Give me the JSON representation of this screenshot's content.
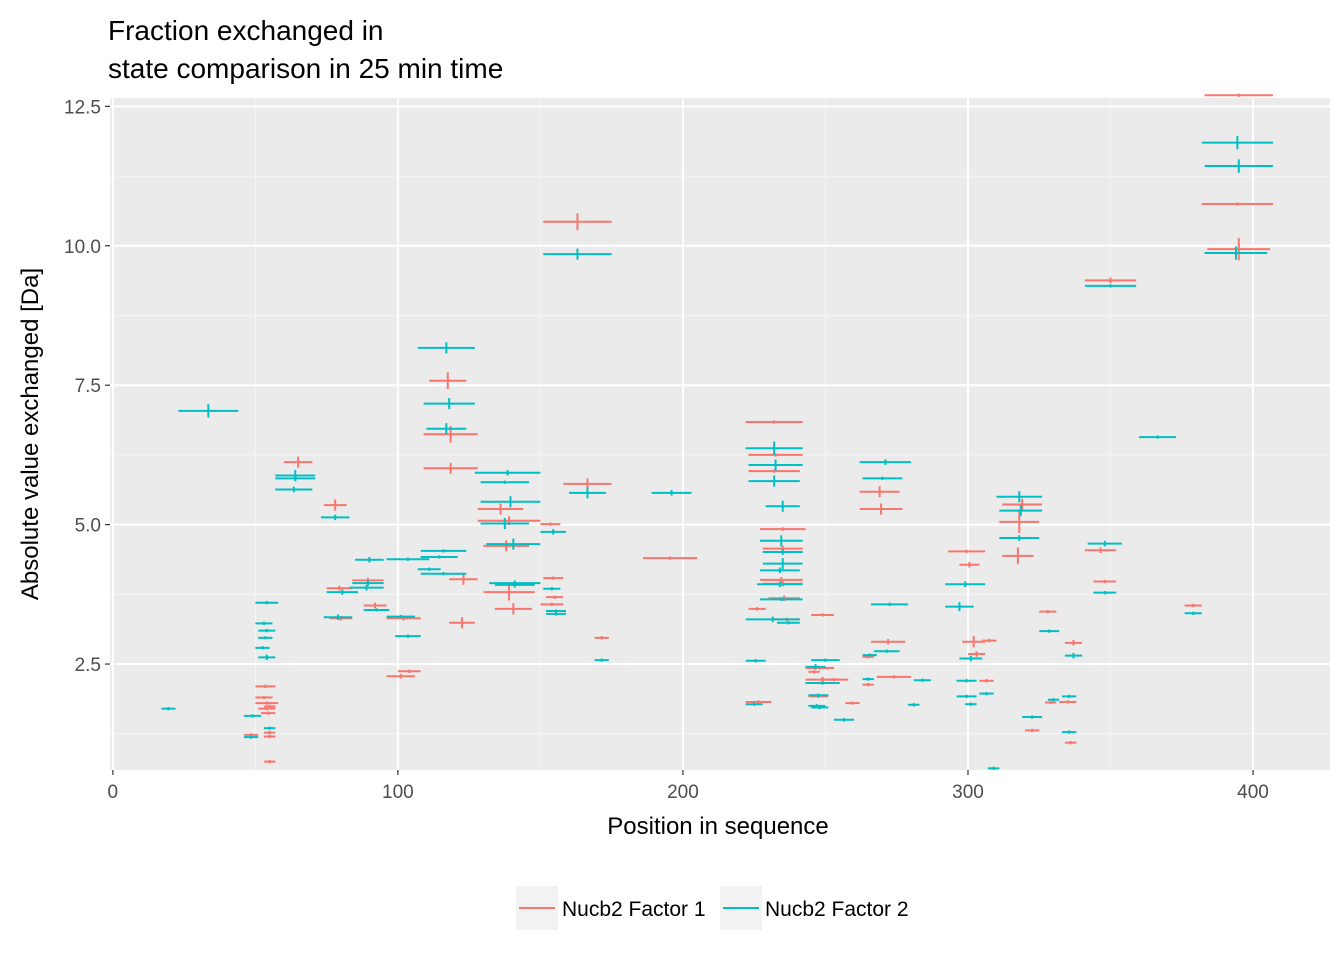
{
  "chart_data": {
    "type": "errorbar",
    "title_lines": [
      "Fraction exchanged in",
      "state comparison in 25 min time"
    ],
    "xlabel": "Position in sequence",
    "ylabel": "Absolute value exchanged [Da]",
    "xlim": [
      -1,
      427
    ],
    "ylim": [
      0.6,
      12.65
    ],
    "x_ticks": [
      0,
      100,
      200,
      300,
      400
    ],
    "x_tick_labels": [
      "0",
      "100",
      "200",
      "300",
      "400"
    ],
    "y_ticks": [
      2.5,
      5.0,
      7.5,
      10.0,
      12.5
    ],
    "y_tick_labels": [
      "2.5",
      "5.0",
      "7.5",
      "10.0",
      "12.5"
    ],
    "grid": true,
    "legend_position": "bottom",
    "series": [
      {
        "name": "Nucb2 Factor 1",
        "color": "#F8766D",
        "segments": [
          [
            60,
            70,
            6.12,
            0.1
          ],
          [
            74,
            82,
            5.35,
            0.1
          ],
          [
            76,
            84,
            3.32,
            0.04
          ],
          [
            75,
            84,
            3.86,
            0.04
          ],
          [
            84,
            95,
            4.0,
            0.05
          ],
          [
            88,
            96,
            3.55,
            0.05
          ],
          [
            96,
            108,
            3.32,
            0.04
          ],
          [
            96,
            106,
            2.28,
            0.04
          ],
          [
            100,
            108,
            2.37,
            0.03
          ],
          [
            111,
            124,
            7.58,
            0.15
          ],
          [
            109,
            128,
            6.01,
            0.1
          ],
          [
            109,
            128,
            6.62,
            0.15
          ],
          [
            118,
            128,
            4.02,
            0.1
          ],
          [
            118,
            127,
            3.24,
            0.1
          ],
          [
            128,
            144,
            5.28,
            0.1
          ],
          [
            128,
            150,
            5.07,
            0.08
          ],
          [
            130,
            146,
            4.62,
            0.1
          ],
          [
            130,
            148,
            3.79,
            0.15
          ],
          [
            134,
            147,
            3.49,
            0.1
          ],
          [
            150,
            157,
            5.01,
            0.03
          ],
          [
            151,
            158,
            4.04,
            0.03
          ],
          [
            152,
            158,
            3.7,
            0.03
          ],
          [
            150,
            158,
            3.57,
            0.03
          ],
          [
            151,
            175,
            10.43,
            0.15
          ],
          [
            158,
            175,
            5.73,
            0.1
          ],
          [
            169,
            174,
            2.97,
            0.03
          ],
          [
            186,
            205,
            4.4,
            0.03
          ],
          [
            223,
            229,
            3.49,
            0.03
          ],
          [
            222,
            231,
            1.82,
            0.03
          ],
          [
            222,
            242,
            6.84,
            0.03
          ],
          [
            223,
            242,
            6.25,
            0.03
          ],
          [
            223,
            241,
            5.96,
            0.03
          ],
          [
            227,
            243,
            4.92,
            0.03
          ],
          [
            228,
            242,
            4.57,
            0.05
          ],
          [
            227,
            242,
            4.01,
            0.05
          ],
          [
            228,
            242,
            3.94,
            0.05
          ],
          [
            230,
            241,
            3.68,
            0.05
          ],
          [
            232,
            241,
            3.3,
            0.03
          ],
          [
            245,
            253,
            3.38,
            0.03
          ],
          [
            243,
            253,
            2.43,
            0.03
          ],
          [
            244,
            248,
            2.36,
            0.03
          ],
          [
            243,
            255,
            2.22,
            0.05
          ],
          [
            248,
            258,
            2.22,
            0.03
          ],
          [
            244,
            251,
            1.92,
            0.03
          ],
          [
            257,
            262,
            1.8,
            0.03
          ],
          [
            263,
            267,
            2.13,
            0.03
          ],
          [
            263,
            267,
            2.63,
            0.03
          ],
          [
            262,
            276,
            5.59,
            0.1
          ],
          [
            262,
            277,
            5.28,
            0.1
          ],
          [
            266,
            278,
            2.9,
            0.05
          ],
          [
            268,
            280,
            2.27,
            0.03
          ],
          [
            293,
            306,
            4.52,
            0.03
          ],
          [
            298,
            306,
            2.9,
            0.1
          ],
          [
            300,
            306,
            2.68,
            0.05
          ],
          [
            297,
            304,
            4.28,
            0.05
          ],
          [
            304,
            309,
            2.2,
            0.03
          ],
          [
            305,
            310,
            2.92,
            0.03
          ],
          [
            312,
            326,
            5.36,
            0.1
          ],
          [
            311,
            325,
            5.05,
            0.2
          ],
          [
            312,
            323,
            4.44,
            0.15
          ],
          [
            325,
            331,
            3.44,
            0.03
          ],
          [
            327,
            331,
            1.81,
            0.03
          ],
          [
            332,
            338,
            1.82,
            0.03
          ],
          [
            334,
            340,
            2.88,
            0.05
          ],
          [
            334,
            338,
            1.09,
            0.03
          ],
          [
            320,
            325,
            1.31,
            0.03
          ],
          [
            341,
            352,
            4.54,
            0.05
          ],
          [
            344,
            352,
            3.98,
            0.03
          ],
          [
            341,
            359,
            9.38,
            0.05
          ],
          [
            376,
            382,
            3.55,
            0.03
          ],
          [
            383,
            407,
            12.7,
            0.03
          ],
          [
            382,
            407,
            10.75,
            0.03
          ],
          [
            384,
            406,
            9.94,
            0.2
          ],
          [
            46,
            51,
            1.23,
            0.03
          ],
          [
            50,
            57,
            2.1,
            0.03
          ],
          [
            50,
            56,
            1.9,
            0.03
          ],
          [
            50,
            58,
            1.8,
            0.03
          ],
          [
            51,
            57,
            1.7,
            0.03
          ],
          [
            52,
            57,
            1.62,
            0.03
          ],
          [
            53,
            57,
            1.27,
            0.03
          ],
          [
            53,
            57,
            1.2,
            0.03
          ],
          [
            53,
            57,
            1.74,
            0.03
          ],
          [
            53,
            57,
            0.75,
            0.03
          ]
        ]
      },
      {
        "name": "Nucb2 Factor 2",
        "color": "#00BFC4",
        "segments": [
          [
            23,
            44,
            7.04,
            0.12
          ],
          [
            17,
            22,
            1.7,
            0.03
          ],
          [
            46,
            52,
            1.57,
            0.03
          ],
          [
            46,
            51,
            1.19,
            0.03
          ],
          [
            50,
            58,
            3.6,
            0.03
          ],
          [
            50,
            56,
            3.23,
            0.03
          ],
          [
            51,
            57,
            3.1,
            0.03
          ],
          [
            51,
            56,
            2.97,
            0.03
          ],
          [
            50,
            55,
            2.79,
            0.03
          ],
          [
            51,
            57,
            2.62,
            0.05
          ],
          [
            53,
            57,
            1.35,
            0.03
          ],
          [
            57,
            71,
            5.88,
            0.1
          ],
          [
            57,
            71,
            5.83,
            0.05
          ],
          [
            57,
            70,
            5.63,
            0.05
          ],
          [
            73,
            83,
            5.13,
            0.05
          ],
          [
            74,
            84,
            3.34,
            0.05
          ],
          [
            75,
            86,
            3.79,
            0.05
          ],
          [
            83,
            95,
            3.87,
            0.05
          ],
          [
            84,
            95,
            3.95,
            0.05
          ],
          [
            85,
            95,
            4.37,
            0.05
          ],
          [
            88,
            97,
            3.47,
            0.03
          ],
          [
            96,
            111,
            4.38,
            0.03
          ],
          [
            96,
            106,
            3.35,
            0.03
          ],
          [
            99,
            108,
            3.0,
            0.03
          ],
          [
            107,
            115,
            4.2,
            0.03
          ],
          [
            108,
            121,
            4.42,
            0.03
          ],
          [
            108,
            124,
            4.53,
            0.03
          ],
          [
            108,
            124,
            4.12,
            0.03
          ],
          [
            107,
            127,
            8.17,
            0.1
          ],
          [
            109,
            127,
            7.17,
            0.1
          ],
          [
            110,
            124,
            6.72,
            0.1
          ],
          [
            127,
            150,
            5.93,
            0.05
          ],
          [
            129,
            146,
            5.76,
            0.03
          ],
          [
            129,
            150,
            5.41,
            0.1
          ],
          [
            129,
            146,
            5.02,
            0.1
          ],
          [
            131,
            150,
            4.65,
            0.1
          ],
          [
            132,
            150,
            3.95,
            0.05
          ],
          [
            134,
            148,
            3.92,
            0.05
          ],
          [
            150,
            159,
            4.87,
            0.05
          ],
          [
            151,
            157,
            3.85,
            0.03
          ],
          [
            152,
            159,
            3.45,
            0.03
          ],
          [
            152,
            159,
            3.4,
            0.03
          ],
          [
            151,
            175,
            9.85,
            0.1
          ],
          [
            160,
            173,
            5.57,
            0.1
          ],
          [
            169,
            174,
            2.57,
            0.03
          ],
          [
            189,
            203,
            5.57,
            0.05
          ],
          [
            222,
            229,
            2.56,
            0.03
          ],
          [
            222,
            228,
            1.78,
            0.03
          ],
          [
            222,
            242,
            6.37,
            0.12
          ],
          [
            223,
            242,
            6.07,
            0.1
          ],
          [
            223,
            241,
            5.78,
            0.1
          ],
          [
            229,
            241,
            5.33,
            0.1
          ],
          [
            227,
            242,
            4.71,
            0.1
          ],
          [
            228,
            242,
            4.51,
            0.05
          ],
          [
            228,
            242,
            4.3,
            0.1
          ],
          [
            227,
            241,
            4.18,
            0.05
          ],
          [
            226,
            242,
            3.93,
            0.05
          ],
          [
            227,
            242,
            3.66,
            0.03
          ],
          [
            222,
            241,
            3.3,
            0.05
          ],
          [
            233,
            241,
            3.24,
            0.03
          ],
          [
            243,
            250,
            2.45,
            0.05
          ],
          [
            245,
            255,
            2.57,
            0.03
          ],
          [
            243,
            255,
            2.16,
            0.03
          ],
          [
            244,
            251,
            1.94,
            0.03
          ],
          [
            244,
            250,
            1.75,
            0.03
          ],
          [
            245,
            251,
            1.72,
            0.03
          ],
          [
            253,
            260,
            1.5,
            0.03
          ],
          [
            263,
            267,
            2.23,
            0.03
          ],
          [
            263,
            268,
            2.66,
            0.03
          ],
          [
            262,
            280,
            6.12,
            0.05
          ],
          [
            263,
            277,
            5.83,
            0.03
          ],
          [
            266,
            279,
            3.57,
            0.03
          ],
          [
            267,
            276,
            2.73,
            0.03
          ],
          [
            281,
            287,
            2.21,
            0.03
          ],
          [
            279,
            283,
            1.77,
            0.03
          ],
          [
            292,
            306,
            3.93,
            0.05
          ],
          [
            292,
            302,
            3.53,
            0.08
          ],
          [
            297,
            305,
            2.6,
            0.05
          ],
          [
            296,
            303,
            2.2,
            0.03
          ],
          [
            296,
            303,
            1.92,
            0.03
          ],
          [
            299,
            303,
            1.78,
            0.03
          ],
          [
            304,
            309,
            1.97,
            0.03
          ],
          [
            307,
            311,
            0.63,
            0.03
          ],
          [
            310,
            326,
            5.5,
            0.1
          ],
          [
            311,
            326,
            5.25,
            0.1
          ],
          [
            311,
            325,
            4.76,
            0.05
          ],
          [
            319,
            326,
            1.55,
            0.03
          ],
          [
            325,
            332,
            3.09,
            0.03
          ],
          [
            328,
            332,
            1.86,
            0.03
          ],
          [
            333,
            338,
            1.92,
            0.03
          ],
          [
            334,
            340,
            2.65,
            0.05
          ],
          [
            333,
            338,
            1.28,
            0.03
          ],
          [
            342,
            354,
            4.66,
            0.05
          ],
          [
            344,
            352,
            3.78,
            0.03
          ],
          [
            341,
            359,
            9.28,
            0.03
          ],
          [
            360,
            373,
            6.57,
            0.03
          ],
          [
            376,
            382,
            3.41,
            0.03
          ],
          [
            382,
            407,
            11.85,
            0.12
          ],
          [
            383,
            407,
            11.43,
            0.12
          ],
          [
            383,
            405,
            9.87,
            0.12
          ]
        ]
      }
    ]
  }
}
